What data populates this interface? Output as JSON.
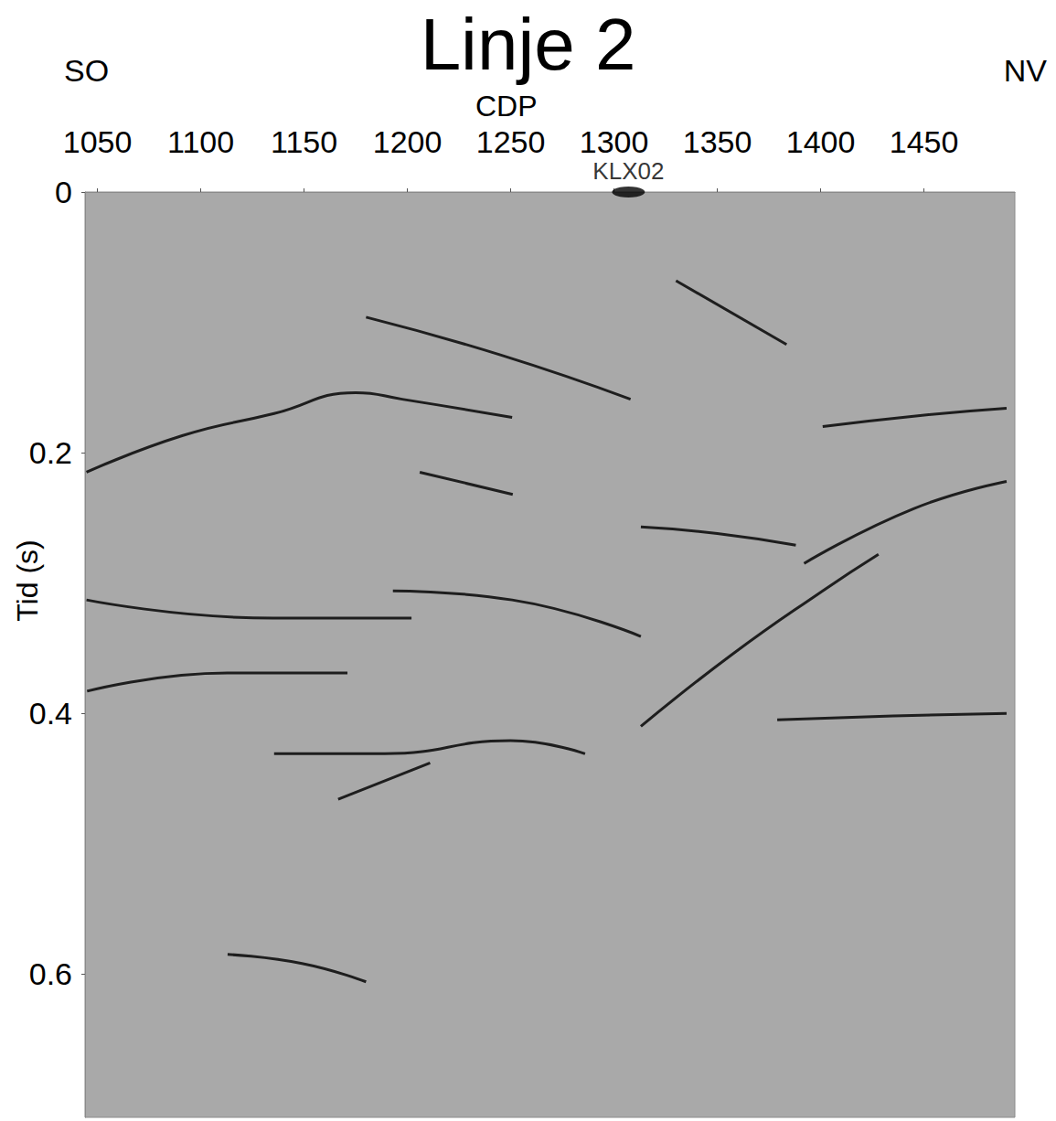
{
  "chart_data": {
    "type": "seismic_section",
    "title": "Linje 2",
    "x_label": "CDP",
    "y_label": "Tid (s)",
    "direction_labels": [
      "SO",
      "NV"
    ],
    "xlim": [
      1044,
      1494
    ],
    "xticks": [
      1050,
      1100,
      1150,
      1200,
      1250,
      1300,
      1350,
      1400,
      1450
    ],
    "ylim": [
      0,
      0.71
    ],
    "yticks": [
      0,
      0.2,
      0.4,
      0.6
    ],
    "grid": false,
    "color": "#1e1e1e",
    "annotations": [
      {
        "text": "KLX02",
        "x": 1307,
        "y": 0,
        "marker": "ellipse"
      }
    ],
    "series": [
      {
        "values": [
          [
            1044.7,
            0.215
          ],
          [
            1091,
            0.187
          ],
          [
            1135.5,
            0.17
          ],
          [
            1175,
            0.154
          ],
          [
            1197.5,
            0.159
          ],
          [
            1250.7,
            0.173
          ]
        ]
      },
      {
        "values": [
          [
            1180,
            0.096
          ],
          [
            1245,
            0.125
          ],
          [
            1308,
            0.159
          ]
        ]
      },
      {
        "values": [
          [
            1330,
            0.068
          ],
          [
            1383.5,
            0.117
          ]
        ]
      },
      {
        "values": [
          [
            1401,
            0.18
          ],
          [
            1445,
            0.172
          ],
          [
            1490,
            0.166
          ]
        ]
      },
      {
        "values": [
          [
            1206,
            0.215
          ],
          [
            1251,
            0.232
          ]
        ]
      },
      {
        "values": [
          [
            1313,
            0.257
          ],
          [
            1350,
            0.262
          ],
          [
            1388,
            0.271
          ]
        ]
      },
      {
        "values": [
          [
            1392,
            0.285
          ],
          [
            1445,
            0.243
          ],
          [
            1490,
            0.222
          ]
        ]
      },
      {
        "values": [
          [
            1313,
            0.41
          ],
          [
            1357,
            0.355
          ],
          [
            1401,
            0.306
          ],
          [
            1428,
            0.278
          ]
        ]
      },
      {
        "values": [
          [
            1044.7,
            0.313
          ],
          [
            1135,
            0.327
          ],
          [
            1202,
            0.327
          ]
        ]
      },
      {
        "values": [
          [
            1193,
            0.306
          ],
          [
            1250.7,
            0.313
          ],
          [
            1313,
            0.341
          ]
        ]
      },
      {
        "values": [
          [
            1045,
            0.383
          ],
          [
            1113,
            0.369
          ],
          [
            1171,
            0.369
          ]
        ]
      },
      {
        "values": [
          [
            1135.5,
            0.431
          ],
          [
            1189,
            0.431
          ],
          [
            1250,
            0.421
          ],
          [
            1286,
            0.431
          ]
        ]
      },
      {
        "values": [
          [
            1166.5,
            0.466
          ],
          [
            1211,
            0.438
          ]
        ]
      },
      {
        "values": [
          [
            1379,
            0.405
          ],
          [
            1435,
            0.402
          ],
          [
            1490,
            0.4
          ]
        ]
      },
      {
        "values": [
          [
            1113,
            0.585
          ],
          [
            1149,
            0.592
          ],
          [
            1180,
            0.606
          ]
        ]
      }
    ]
  }
}
